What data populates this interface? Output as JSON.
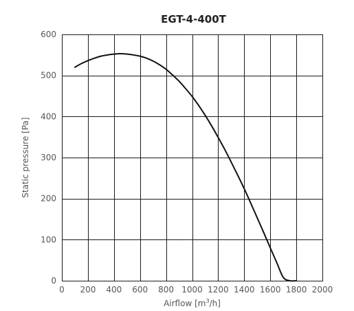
{
  "chart_data": {
    "type": "line",
    "title": "EGT-4-400T",
    "xlabel": "Airflow [m",
    "xlabel_sup": "3",
    "xlabel_tail": "/h]",
    "ylabel": "Static pressure [Pa]",
    "xlim": [
      0,
      2000
    ],
    "ylim": [
      0,
      600
    ],
    "x_ticks": [
      "0",
      "200",
      "400",
      "600",
      "800",
      "1000",
      "1200",
      "1400",
      "1600",
      "1800",
      "2000"
    ],
    "y_ticks": [
      "0",
      "100",
      "200",
      "300",
      "400",
      "500",
      "600"
    ],
    "grid": true,
    "series": [
      {
        "x": [
          100,
          150,
          200,
          250,
          300,
          350,
          400,
          450,
          500,
          550,
          600,
          650,
          700,
          750,
          800,
          850,
          900,
          950,
          1000,
          1050,
          1100,
          1150,
          1200,
          1250,
          1300,
          1350,
          1400,
          1450,
          1500,
          1550,
          1600,
          1650,
          1700,
          1750,
          1800
        ],
        "y": [
          520,
          529,
          536,
          542,
          547,
          550,
          552,
          553,
          552,
          550,
          547,
          542,
          535,
          526,
          515,
          501,
          486,
          468,
          449,
          427,
          403,
          377,
          349,
          320,
          289,
          257,
          224,
          189,
          153,
          117,
          80,
          44,
          8,
          -22,
          0
        ]
      }
    ]
  }
}
